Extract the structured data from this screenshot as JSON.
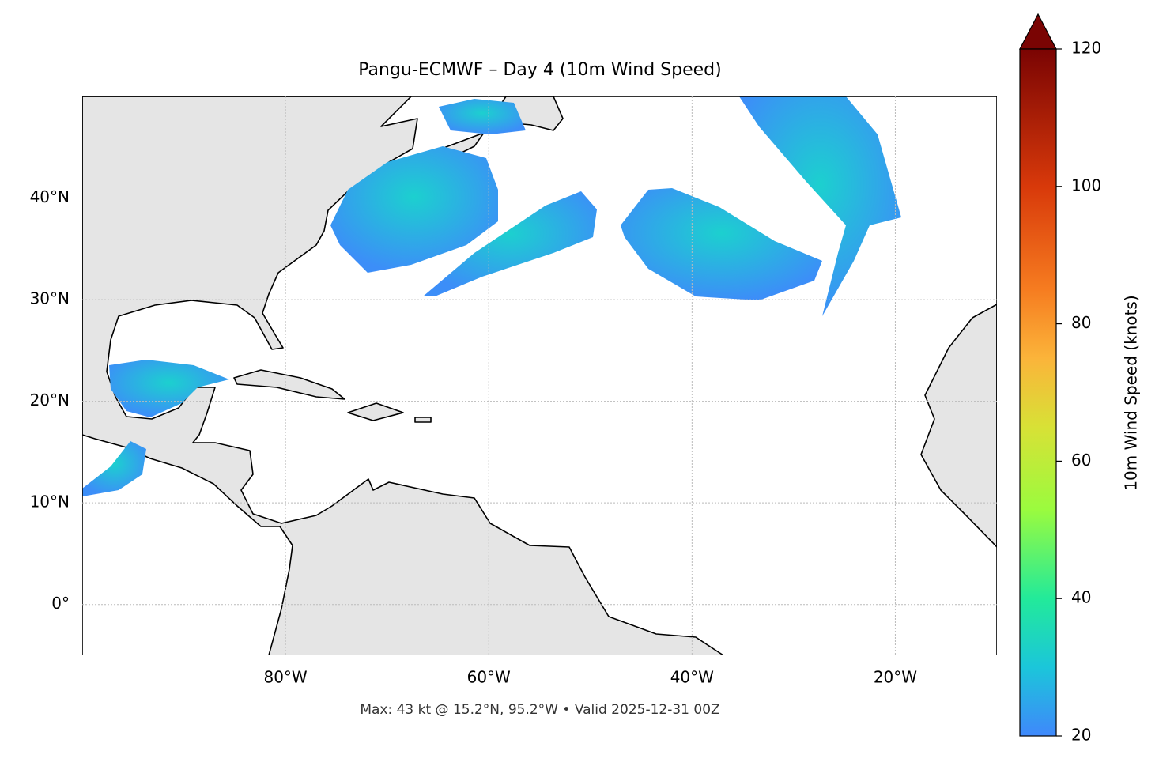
{
  "map": {
    "title": "Pangu-ECMWF – Day 4 (10m Wind Speed)",
    "footer": "Max: 43 kt @ 15.2°N, 95.2°W • Valid 2025-12-31 00Z",
    "xlim": [
      -100,
      -10
    ],
    "ylim": [
      -5,
      50
    ],
    "xticks": [
      {
        "value": -80,
        "label": "80°W"
      },
      {
        "value": -60,
        "label": "60°W"
      },
      {
        "value": -40,
        "label": "40°W"
      },
      {
        "value": -20,
        "label": "20°W"
      }
    ],
    "yticks": [
      {
        "value": 0,
        "label": "0°"
      },
      {
        "value": 10,
        "label": "10°N"
      },
      {
        "value": 20,
        "label": "20°N"
      },
      {
        "value": 30,
        "label": "30°N"
      },
      {
        "value": 40,
        "label": "40°N"
      }
    ],
    "grid": true,
    "colorbar": {
      "label": "10m Wind Speed (knots)",
      "lim": [
        20,
        120
      ],
      "ticks": [
        20,
        40,
        60,
        80,
        100,
        120
      ]
    }
  }
}
